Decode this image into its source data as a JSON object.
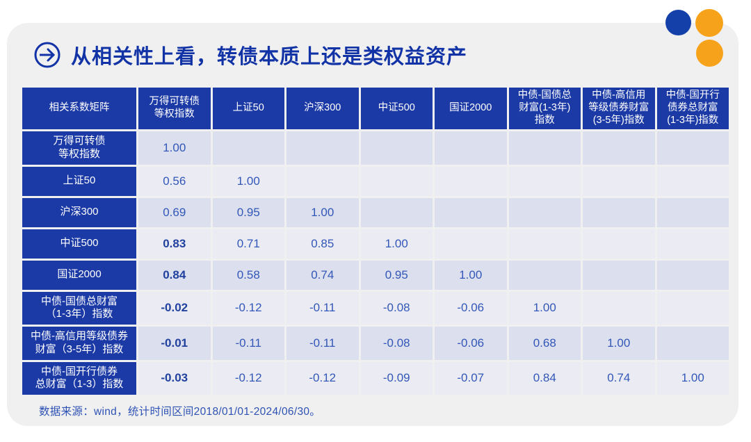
{
  "title": {
    "text": "从相关性上看，转债本质上还是类权益资产",
    "icon": "arrow-right-circle-icon",
    "color": "#1233a6"
  },
  "colors": {
    "card_background": "#f0f0f1",
    "header_blue": "#1b3aa6",
    "row_dark": "#dbdfee",
    "row_light": "#ebecf3",
    "value_text": "#3357b8",
    "bold_value_text": "#21419f",
    "title_blue": "#1233a6",
    "footer_blue": "#2e52b4",
    "decor_circle_blue": "#1340a9",
    "decor_circle_orange": "#f6a21a"
  },
  "table": {
    "corner_header": "相关系数矩阵",
    "column_headers": [
      "万得可转债\n等权指数",
      "上证50",
      "沪深300",
      "中证500",
      "国证2000",
      "中债-国债总\n财富(1-3年)\n指数",
      "中债-高信用\n等级债券财富\n(3-5年)指数",
      "中债-国开行\n债券总财富\n(1-3年)指数"
    ],
    "rows": [
      {
        "label": "万得可转债\n等权指数",
        "first_bold": false,
        "values": [
          "1.00",
          "",
          "",
          "",
          "",
          "",
          "",
          ""
        ]
      },
      {
        "label": "上证50",
        "first_bold": false,
        "values": [
          "0.56",
          "1.00",
          "",
          "",
          "",
          "",
          "",
          ""
        ]
      },
      {
        "label": "沪深300",
        "first_bold": false,
        "values": [
          "0.69",
          "0.95",
          "1.00",
          "",
          "",
          "",
          "",
          ""
        ]
      },
      {
        "label": "中证500",
        "first_bold": true,
        "values": [
          "0.83",
          "0.71",
          "0.85",
          "1.00",
          "",
          "",
          "",
          ""
        ]
      },
      {
        "label": "国证2000",
        "first_bold": true,
        "values": [
          "0.84",
          "0.58",
          "0.74",
          "0.95",
          "1.00",
          "",
          "",
          ""
        ]
      },
      {
        "label": "中债-国债总财富\n（1-3年）指数",
        "first_bold": true,
        "values": [
          "-0.02",
          "-0.12",
          "-0.11",
          "-0.08",
          "-0.06",
          "1.00",
          "",
          ""
        ]
      },
      {
        "label": "中债-高信用等级债券\n财富（3-5年）指数",
        "first_bold": true,
        "values": [
          "-0.01",
          "-0.11",
          "-0.11",
          "-0.08",
          "-0.06",
          "0.68",
          "1.00",
          ""
        ]
      },
      {
        "label": "中债-国开行债券\n总财富（1-3）指数",
        "first_bold": true,
        "values": [
          "-0.03",
          "-0.12",
          "-0.12",
          "-0.09",
          "-0.07",
          "0.84",
          "0.74",
          "1.00"
        ]
      }
    ]
  },
  "footer": {
    "text": "数据来源：wind，统计时间区间2018/01/01-2024/06/30。"
  },
  "chart_data": {
    "type": "table",
    "title": "从相关性上看，转债本质上还是类权益资产",
    "corner_label": "相关系数矩阵",
    "columns": [
      "万得可转债等权指数",
      "上证50",
      "沪深300",
      "中证500",
      "国证2000",
      "中债-国债总财富(1-3年)指数",
      "中债-高信用等级债券财富(3-5年)指数",
      "中债-国开行债券总财富(1-3年)指数"
    ],
    "row_labels": [
      "万得可转债等权指数",
      "上证50",
      "沪深300",
      "中证500",
      "国证2000",
      "中债-国债总财富（1-3年）指数",
      "中债-高信用等级债券财富（3-5年）指数",
      "中债-国开行债券总财富（1-3）指数"
    ],
    "matrix": [
      [
        1.0,
        null,
        null,
        null,
        null,
        null,
        null,
        null
      ],
      [
        0.56,
        1.0,
        null,
        null,
        null,
        null,
        null,
        null
      ],
      [
        0.69,
        0.95,
        1.0,
        null,
        null,
        null,
        null,
        null
      ],
      [
        0.83,
        0.71,
        0.85,
        1.0,
        null,
        null,
        null,
        null
      ],
      [
        0.84,
        0.58,
        0.74,
        0.95,
        1.0,
        null,
        null,
        null
      ],
      [
        -0.02,
        -0.12,
        -0.11,
        -0.08,
        -0.06,
        1.0,
        null,
        null
      ],
      [
        -0.01,
        -0.11,
        -0.11,
        -0.08,
        -0.06,
        0.68,
        1.0,
        null
      ],
      [
        -0.03,
        -0.12,
        -0.12,
        -0.09,
        -0.07,
        0.84,
        0.74,
        1.0
      ]
    ],
    "bold_cells": "first data column of rows 中证500, 国证2000, 中债-国债总财富, 中债-高信用等级债券财富, 中债-国开行债券",
    "source_note": "数据来源：wind，统计时间区间2018/01/01-2024/06/30。"
  }
}
